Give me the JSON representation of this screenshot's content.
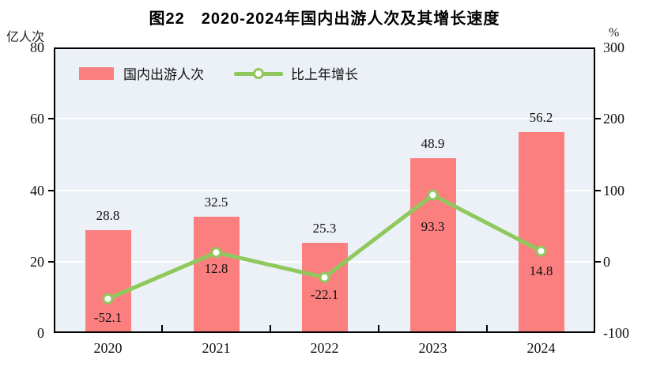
{
  "title": "图22　2020-2024年国内出游人次及其增长速度",
  "legend": {
    "bars": "国内出游人次",
    "line": "比上年增长"
  },
  "chart_data": {
    "type": "bar",
    "subtype": "bar+line dual-axis",
    "categories": [
      "2020",
      "2021",
      "2022",
      "2023",
      "2024"
    ],
    "series": [
      {
        "name": "国内出游人次",
        "type": "bar",
        "axis": "left",
        "values": [
          28.8,
          32.5,
          25.3,
          48.9,
          56.2
        ]
      },
      {
        "name": "比上年增长",
        "type": "line",
        "axis": "right",
        "values": [
          -52.1,
          12.8,
          -22.1,
          93.3,
          14.8
        ]
      }
    ],
    "left_axis": {
      "label": "亿人次",
      "min": 0,
      "max": 80,
      "ticks": [
        0,
        20,
        40,
        60,
        80
      ]
    },
    "right_axis": {
      "label": "%",
      "min": -100,
      "max": 300,
      "ticks": [
        -100,
        0,
        100,
        200,
        300
      ]
    },
    "grid_values_left": [
      20,
      40,
      60
    ],
    "legend_position": "top-left-inside",
    "growth_label_dy": [
      14,
      11,
      12,
      30,
      16
    ],
    "colors": {
      "bar": "#fb7f7f",
      "line": "#8fc85c",
      "marker_fill": "#ffffff",
      "plot_bg": "#ebf1f6",
      "frame": "#000000",
      "grid": "#ffffff",
      "text": "#111111"
    }
  }
}
